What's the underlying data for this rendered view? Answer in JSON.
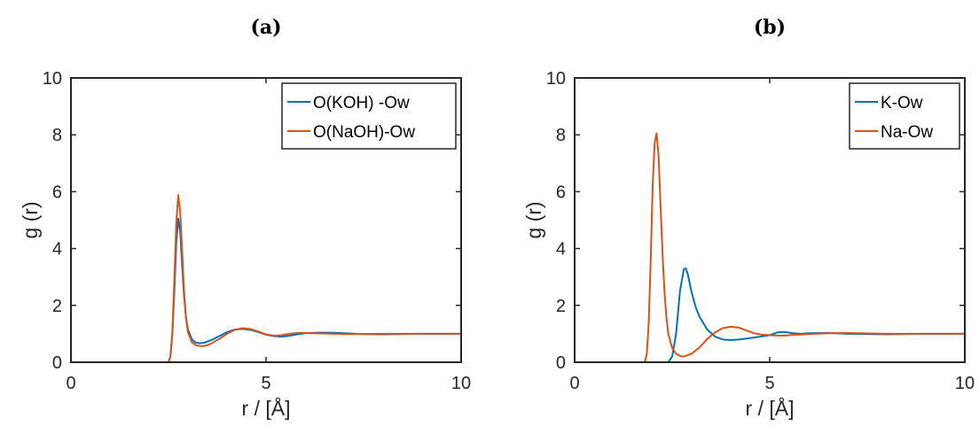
{
  "chart_data": [
    {
      "type": "line",
      "title": "(a)",
      "xlabel": "r /  [Å]",
      "ylabel": "g (r)",
      "xlim": [
        0,
        10
      ],
      "ylim": [
        0,
        10
      ],
      "xticks": [
        "0",
        "5",
        "10"
      ],
      "yticks": [
        "0",
        "2",
        "4",
        "6",
        "8",
        "10"
      ],
      "legend_position": "top-right",
      "grid": false,
      "series": [
        {
          "name": "O(KOH) -Ow",
          "color": "#0072BD",
          "x": [
            0,
            2.0,
            2.5,
            2.55,
            2.6,
            2.65,
            2.7,
            2.75,
            2.8,
            2.85,
            2.9,
            2.95,
            3.0,
            3.1,
            3.2,
            3.3,
            3.4,
            3.6,
            3.8,
            4.0,
            4.2,
            4.4,
            4.6,
            4.8,
            5.0,
            5.2,
            5.4,
            5.6,
            5.8,
            6.0,
            6.3,
            6.7,
            7.0,
            7.5,
            8.0,
            9.0,
            10.0
          ],
          "y": [
            0,
            0,
            0,
            0.2,
            1.0,
            2.5,
            4.2,
            5.05,
            4.6,
            3.4,
            2.3,
            1.55,
            1.15,
            0.8,
            0.69,
            0.67,
            0.68,
            0.78,
            0.92,
            1.06,
            1.15,
            1.17,
            1.14,
            1.06,
            0.97,
            0.92,
            0.9,
            0.93,
            0.98,
            1.02,
            1.04,
            1.04,
            1.02,
            0.99,
            0.98,
            1.0,
            1.0
          ]
        },
        {
          "name": "O(NaOH)-Ow",
          "color": "#D95319",
          "x": [
            0,
            2.0,
            2.5,
            2.55,
            2.6,
            2.65,
            2.7,
            2.75,
            2.8,
            2.85,
            2.9,
            2.95,
            3.0,
            3.1,
            3.2,
            3.3,
            3.4,
            3.5,
            3.6,
            3.8,
            4.0,
            4.2,
            4.4,
            4.6,
            4.8,
            5.0,
            5.2,
            5.4,
            5.6,
            5.8,
            6.0,
            6.5,
            7.0,
            8.0,
            9.0,
            10.0
          ],
          "y": [
            0,
            0,
            0,
            0.2,
            1.1,
            2.9,
            4.9,
            5.88,
            5.3,
            3.9,
            2.5,
            1.55,
            1.05,
            0.7,
            0.6,
            0.57,
            0.57,
            0.6,
            0.66,
            0.82,
            1.0,
            1.14,
            1.2,
            1.17,
            1.08,
            0.98,
            0.93,
            0.95,
            1.0,
            1.03,
            1.03,
            1.01,
            0.99,
            1.0,
            1.0,
            1.0
          ]
        }
      ]
    },
    {
      "type": "line",
      "title": "(b)",
      "xlabel": "r /  [Å]",
      "ylabel": "g (r)",
      "xlim": [
        0,
        10
      ],
      "ylim": [
        0,
        10
      ],
      "xticks": [
        "0",
        "5",
        "10"
      ],
      "yticks": [
        "0",
        "2",
        "4",
        "6",
        "8",
        "10"
      ],
      "legend_position": "top-right",
      "grid": false,
      "series": [
        {
          "name": "K-Ow",
          "color": "#0072BD",
          "x": [
            0,
            2.0,
            2.4,
            2.5,
            2.6,
            2.7,
            2.8,
            2.85,
            2.9,
            3.0,
            3.1,
            3.2,
            3.4,
            3.6,
            3.8,
            4.0,
            4.2,
            4.5,
            5.0,
            5.2,
            5.4,
            5.6,
            5.8,
            6.0,
            6.5,
            7.0,
            8.0,
            9.0,
            10.0
          ],
          "y": [
            0,
            0,
            0,
            0.2,
            1.0,
            2.5,
            3.28,
            3.3,
            3.1,
            2.45,
            1.95,
            1.6,
            1.15,
            0.9,
            0.8,
            0.78,
            0.8,
            0.85,
            0.95,
            1.05,
            1.06,
            1.02,
            1.0,
            1.02,
            1.03,
            1.0,
            0.98,
            1.0,
            1.0
          ]
        },
        {
          "name": "Na-Ow",
          "color": "#D95319",
          "x": [
            0,
            1.5,
            1.8,
            1.85,
            1.9,
            1.95,
            2.0,
            2.05,
            2.1,
            2.15,
            2.2,
            2.25,
            2.3,
            2.35,
            2.4,
            2.5,
            2.6,
            2.7,
            2.8,
            3.0,
            3.2,
            3.4,
            3.6,
            3.8,
            4.0,
            4.2,
            4.4,
            4.6,
            4.8,
            5.0,
            5.2,
            5.4,
            5.6,
            6.0,
            6.5,
            7.0,
            8.0,
            9.0,
            10.0
          ],
          "y": [
            0,
            0,
            0,
            0.3,
            1.4,
            3.6,
            6.2,
            7.7,
            8.05,
            7.3,
            5.6,
            3.9,
            2.55,
            1.6,
            1.0,
            0.5,
            0.3,
            0.22,
            0.2,
            0.3,
            0.52,
            0.82,
            1.05,
            1.2,
            1.25,
            1.22,
            1.12,
            1.02,
            0.97,
            0.95,
            0.94,
            0.94,
            0.96,
            0.99,
            1.02,
            1.03,
            1.0,
            1.0,
            1.0
          ]
        }
      ]
    }
  ]
}
